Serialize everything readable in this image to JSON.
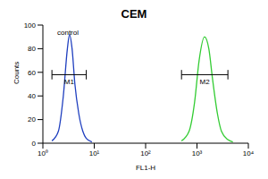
{
  "chart_data": {
    "type": "line",
    "title": "CEM",
    "x_label": "FL1-H",
    "y_label": "Counts",
    "log": "x",
    "grid": false,
    "xlim": [
      1,
      10000
    ],
    "xticks": [
      {
        "value": 1,
        "label": "10⁰"
      },
      {
        "value": 10,
        "label": "10¹"
      },
      {
        "value": 100,
        "label": "10²"
      },
      {
        "value": 1000,
        "label": "10³"
      },
      {
        "value": 10000,
        "label": "10⁴"
      }
    ],
    "ylim": [
      0,
      100
    ],
    "yticks": [
      0,
      20,
      40,
      60,
      80,
      100
    ],
    "annotations": [
      "control"
    ],
    "series": [
      {
        "color": "#1f3fbf",
        "x": [
          1.5,
          2,
          2.5,
          3,
          3.3,
          3.7,
          4.2,
          5,
          6,
          7,
          9
        ],
        "values": [
          2,
          10,
          40,
          80,
          92,
          80,
          50,
          25,
          10,
          4,
          1
        ]
      },
      {
        "color": "#33cc33",
        "x": [
          500,
          700,
          900,
          1100,
          1400,
          1700,
          2000,
          2500,
          3000,
          4000,
          5000
        ],
        "values": [
          2,
          10,
          35,
          70,
          90,
          80,
          55,
          25,
          10,
          3,
          1
        ]
      }
    ],
    "gates": [
      {
        "label": "M1",
        "x": [
          1.5,
          7
        ],
        "y": 58
      },
      {
        "label": "M2",
        "x": [
          500,
          4000
        ],
        "y": 58
      }
    ]
  }
}
